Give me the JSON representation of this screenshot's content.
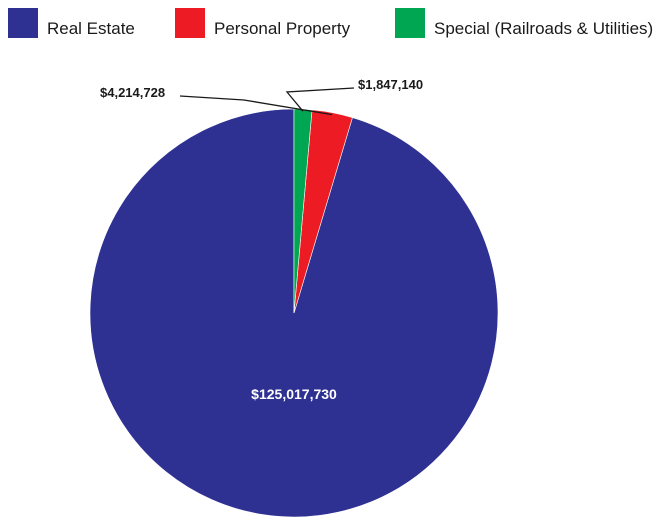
{
  "chart_data": {
    "type": "pie",
    "title": "",
    "legend_position": "top",
    "start_angle": "12 o'clock",
    "direction": "counter-clockwise",
    "slices": [
      {
        "name": "Real Estate",
        "value": 125017730,
        "label": "$125,017,730",
        "color": "#2e3192",
        "label_placement": "inside"
      },
      {
        "name": "Personal Property",
        "value": 4214728,
        "label": "$4,214,728",
        "color": "#ed1c24",
        "label_placement": "outside"
      },
      {
        "name": "Special (Railroads & Utilities)",
        "value": 1847140,
        "label": "$1,847,140",
        "color": "#00a651",
        "label_placement": "outside"
      }
    ]
  }
}
